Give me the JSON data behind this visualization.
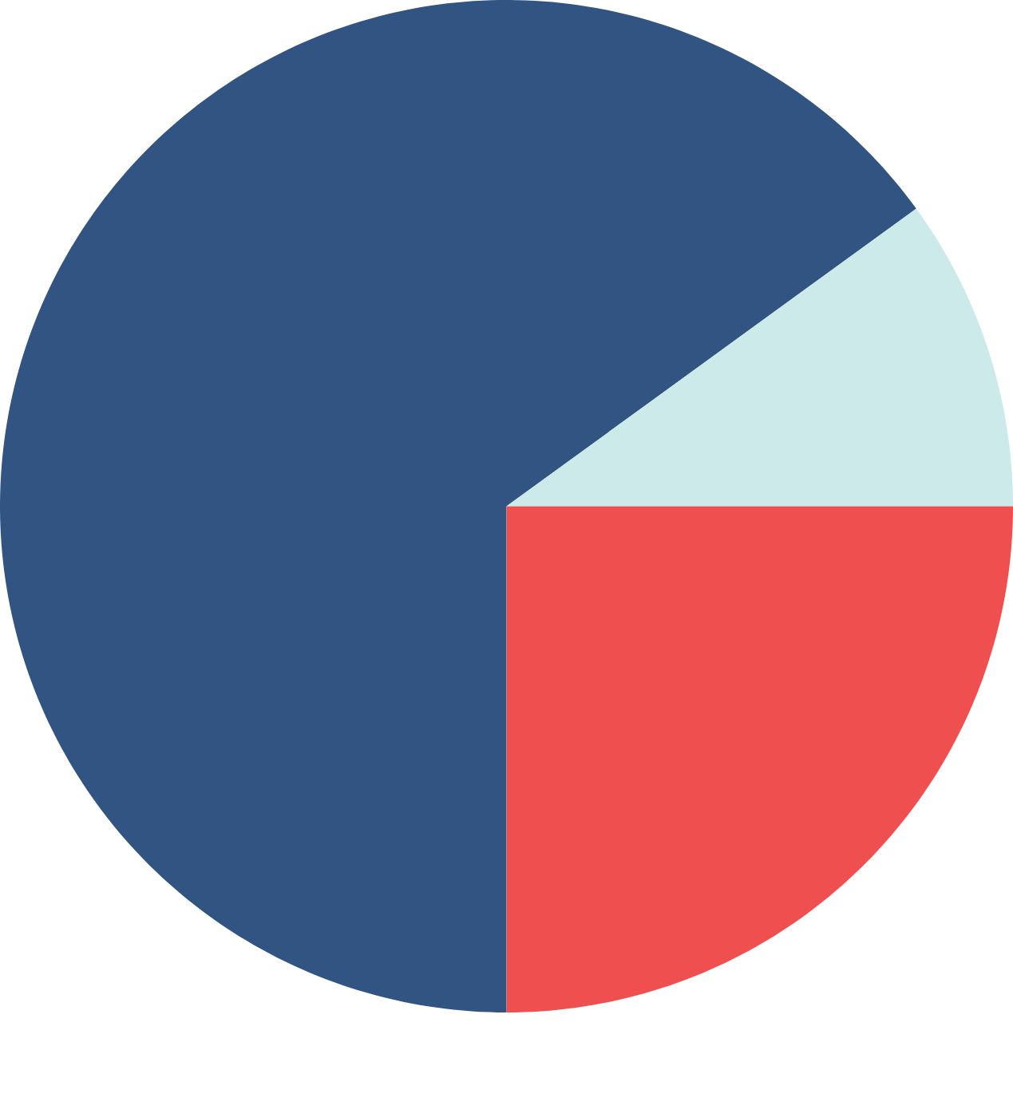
{
  "chart_data": {
    "type": "pie",
    "categories": [
      null,
      null,
      null
    ],
    "values": [
      65,
      10,
      25
    ],
    "colors": [
      "#325482",
      "#cdeaea",
      "#ef4f4f"
    ]
  }
}
